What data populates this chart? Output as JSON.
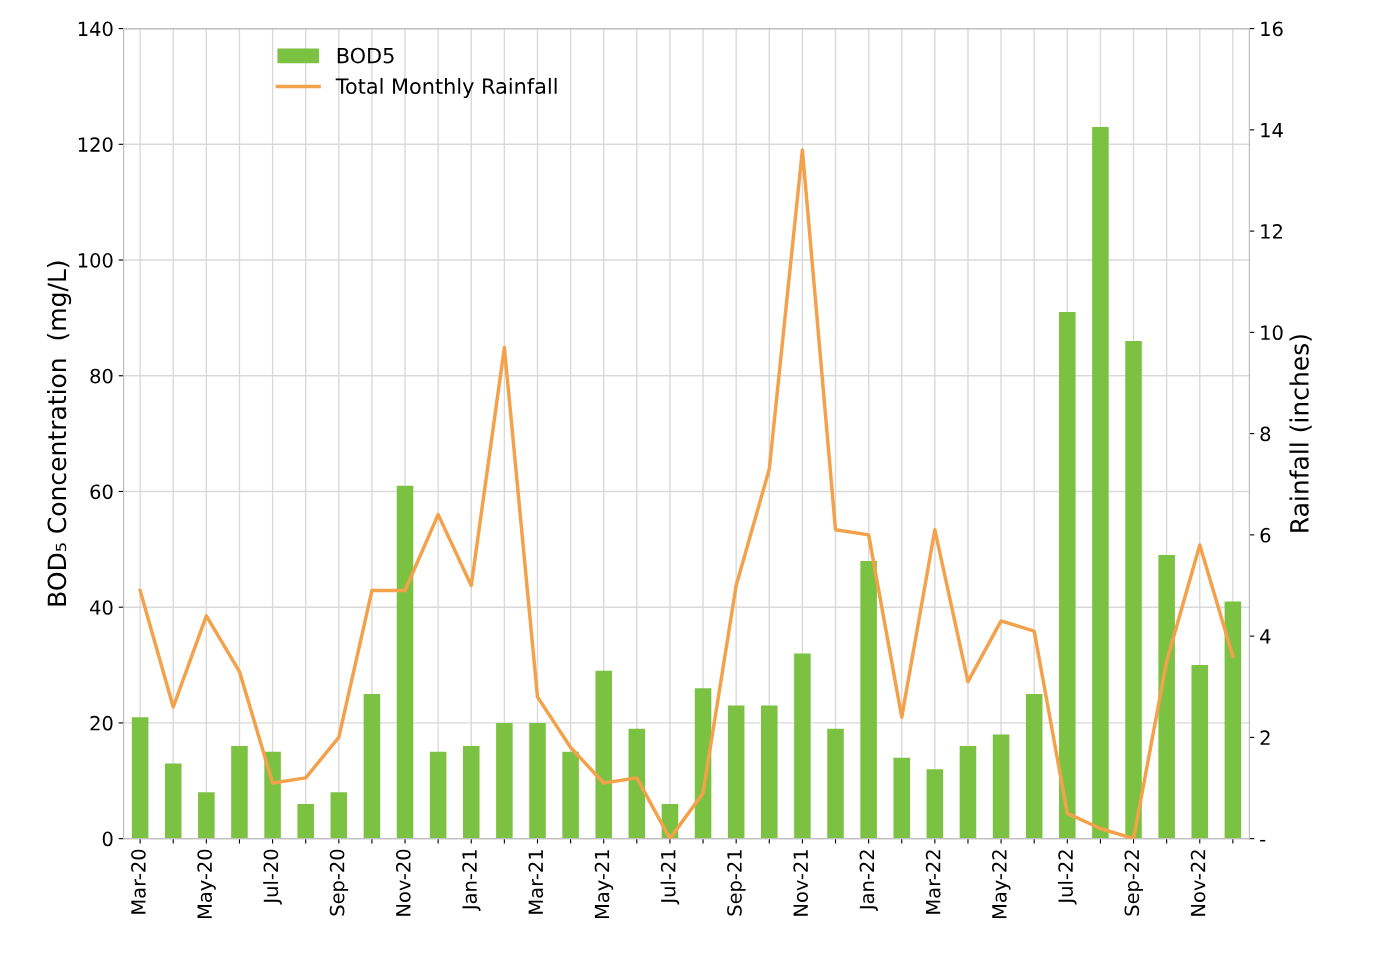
{
  "chart_data": {
    "type": "bar",
    "categories": [
      "Mar-20",
      null,
      "May-20",
      null,
      "Jul-20",
      null,
      "Sep-20",
      null,
      "Nov-20",
      null,
      "Jan-21",
      null,
      "Mar-21",
      null,
      "May-21",
      null,
      "Jul-21",
      null,
      "Sep-21",
      null,
      "Nov-21",
      null,
      "Jan-22",
      null,
      "Mar-22",
      null,
      "May-22",
      null,
      "Jul-22",
      null,
      "Sep-22",
      null,
      "Nov-22",
      null
    ],
    "series": [
      {
        "name": "BOD5",
        "color": "#7cc242",
        "values": [
          21,
          13,
          8,
          16,
          15,
          6,
          8,
          25,
          61,
          15,
          16,
          20,
          20,
          15,
          29,
          19,
          6,
          26,
          23,
          23,
          32,
          19,
          48,
          14,
          12,
          16,
          18,
          25,
          91,
          123,
          86,
          49,
          30,
          41
        ]
      },
      {
        "name": "Total Monthly Rainfall",
        "type": "line",
        "axis": "y2",
        "color": "#f3a14b",
        "values": [
          4.9,
          2.6,
          4.4,
          3.3,
          1.1,
          1.2,
          2.0,
          4.9,
          4.9,
          6.4,
          5.0,
          9.7,
          2.8,
          1.8,
          1.1,
          1.2,
          0.0,
          0.9,
          5.0,
          7.3,
          13.6,
          6.1,
          6.0,
          2.4,
          6.1,
          3.1,
          4.3,
          4.1,
          0.5,
          0.2,
          0.0,
          3.5,
          5.8,
          3.6
        ]
      }
    ],
    "ylabel": "BOD₅ Concentration  (mg/L)",
    "y2label": "Rainfall (inches)",
    "ylim": [
      0,
      140
    ],
    "yticks": [
      0,
      20,
      40,
      60,
      80,
      100,
      120,
      140
    ],
    "y2lim": [
      0,
      16
    ],
    "y2ticks": [
      {
        "value": 0,
        "label": "-"
      },
      2,
      4,
      6,
      8,
      10,
      12,
      14,
      16
    ],
    "grid": true,
    "legend": "top left",
    "marker": "none",
    "line_style": "solid"
  }
}
